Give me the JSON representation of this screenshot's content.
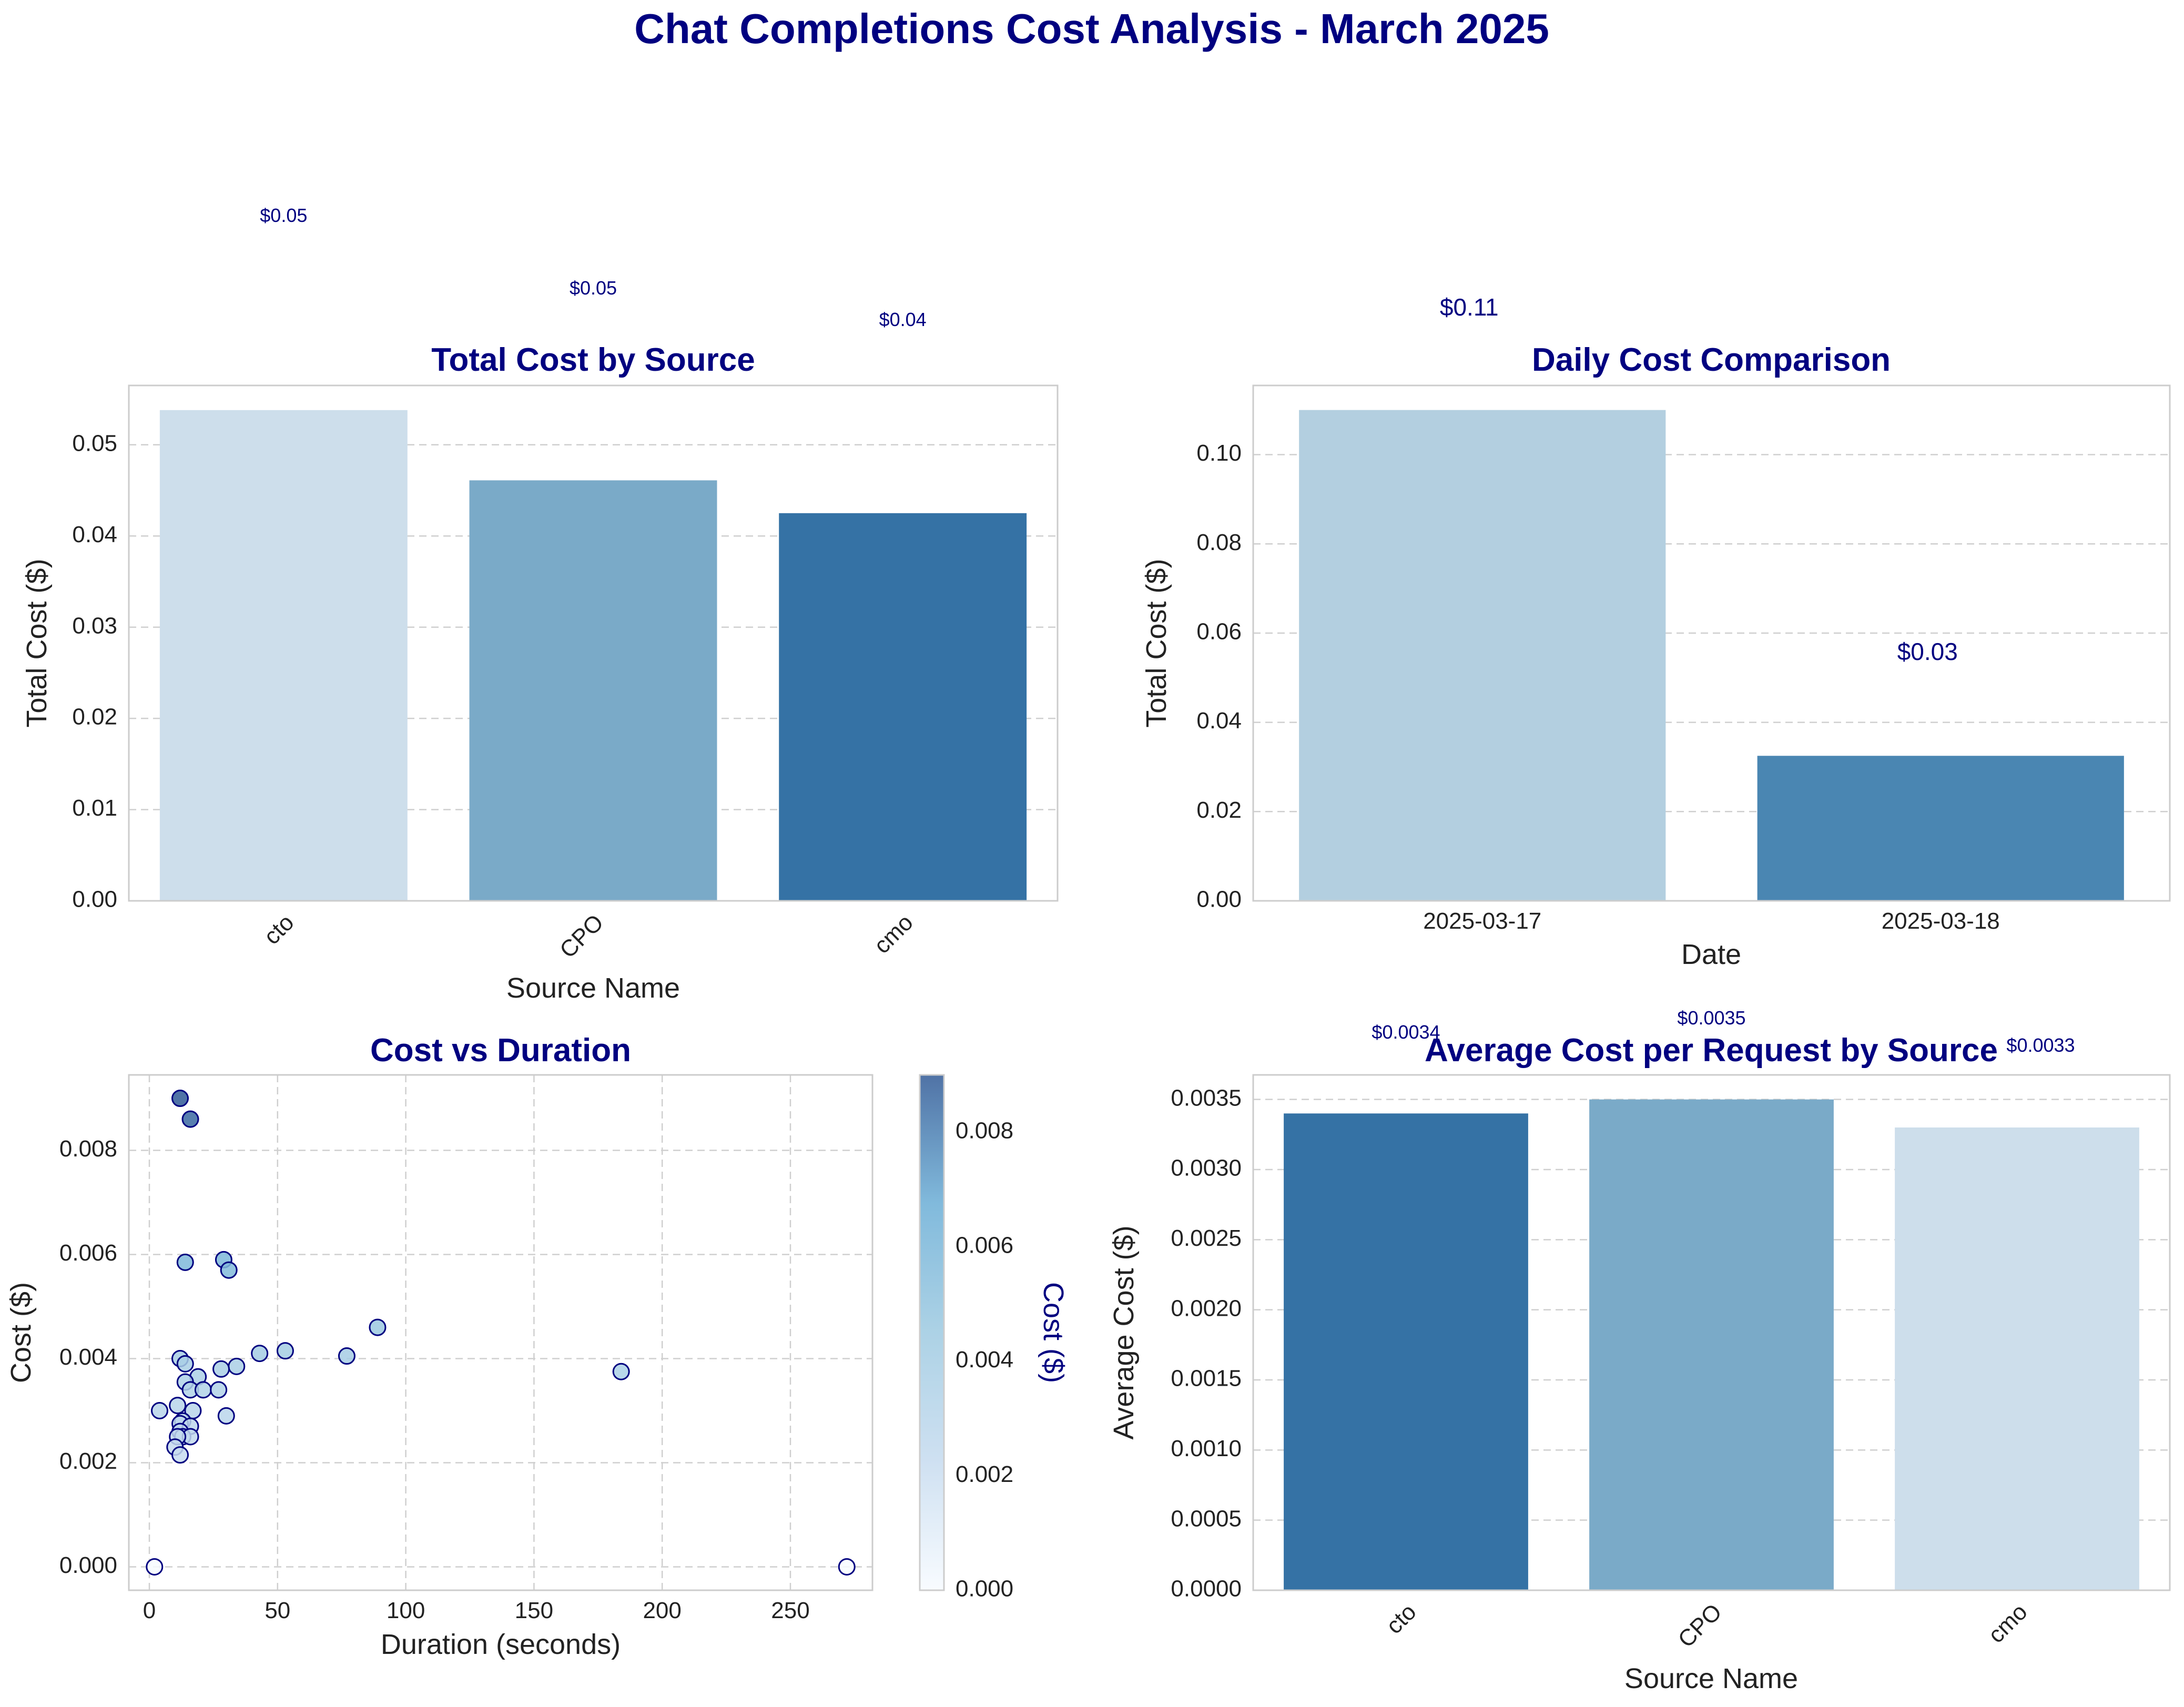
{
  "figure": {
    "title": "Chat Completions Cost Analysis - March 2025"
  },
  "colors": {
    "title": "#000080",
    "axis_text": "#222222",
    "grid": "#cfcfcf",
    "spine": "#cccccc",
    "marker_edge": "#000080"
  },
  "chart_data": [
    {
      "type": "bar",
      "title": "Total Cost by Source",
      "xlabel": "Source Name",
      "ylabel": "Total Cost ($)",
      "categories": [
        "cto",
        "CPO",
        "cmo"
      ],
      "values": [
        0.0538,
        0.0461,
        0.0425
      ],
      "bar_labels": [
        "$0.05",
        "$0.05",
        "$0.04"
      ],
      "colors": [
        "#cddeeb",
        "#7aaac8",
        "#3572a5"
      ],
      "ylim": [
        0,
        0.0565
      ],
      "yticks": [
        0,
        0.01,
        0.02,
        0.03,
        0.04,
        0.05
      ],
      "ytick_labels": [
        "0.00",
        "0.01",
        "0.02",
        "0.03",
        "0.04",
        "0.05"
      ],
      "grid": "y, dashed",
      "xtick_rotation": 45
    },
    {
      "type": "bar",
      "title": "Daily Cost Comparison",
      "xlabel": "Date",
      "ylabel": "Total Cost ($)",
      "categories": [
        "2025-03-17",
        "2025-03-18"
      ],
      "values": [
        0.11,
        0.0325
      ],
      "bar_labels": [
        "$0.11",
        "$0.03"
      ],
      "colors": [
        "#b3cfe0",
        "#4a86b2"
      ],
      "ylim": [
        0,
        0.1155
      ],
      "yticks": [
        0,
        0.02,
        0.04,
        0.06,
        0.08,
        0.1
      ],
      "ytick_labels": [
        "0.00",
        "0.02",
        "0.04",
        "0.06",
        "0.08",
        "0.10"
      ],
      "grid": "y, dashed",
      "xtick_rotation": 0
    },
    {
      "type": "scatter",
      "title": "Cost vs Duration",
      "xlabel": "Duration (seconds)",
      "ylabel": "Cost ($)",
      "colorbar_label": "Cost ($)",
      "colorbar_ticks": [
        "0.000",
        "0.002",
        "0.004",
        "0.006",
        "0.008"
      ],
      "colorbar_range": [
        0,
        0.009
      ],
      "xlim": [
        -8,
        282
      ],
      "ylim": [
        -0.00045,
        0.00945
      ],
      "xticks": [
        0,
        50,
        100,
        150,
        200,
        250
      ],
      "yticks": [
        0,
        0.002,
        0.004,
        0.006,
        0.008
      ],
      "ytick_labels": [
        "0.000",
        "0.002",
        "0.004",
        "0.006",
        "0.008"
      ],
      "grid": "both, dashed",
      "points": [
        {
          "x": 12,
          "y": 0.009
        },
        {
          "x": 16,
          "y": 0.0086
        },
        {
          "x": 29,
          "y": 0.0059
        },
        {
          "x": 31,
          "y": 0.0057
        },
        {
          "x": 14,
          "y": 0.00585
        },
        {
          "x": 89,
          "y": 0.0046
        },
        {
          "x": 53,
          "y": 0.00415
        },
        {
          "x": 43,
          "y": 0.0041
        },
        {
          "x": 77,
          "y": 0.00405
        },
        {
          "x": 12,
          "y": 0.004
        },
        {
          "x": 14,
          "y": 0.0039
        },
        {
          "x": 34,
          "y": 0.00385
        },
        {
          "x": 28,
          "y": 0.0038
        },
        {
          "x": 184,
          "y": 0.00375
        },
        {
          "x": 19,
          "y": 0.00365
        },
        {
          "x": 14,
          "y": 0.00355
        },
        {
          "x": 16,
          "y": 0.0034
        },
        {
          "x": 21,
          "y": 0.0034
        },
        {
          "x": 27,
          "y": 0.0034
        },
        {
          "x": 11,
          "y": 0.0031
        },
        {
          "x": 17,
          "y": 0.003
        },
        {
          "x": 4,
          "y": 0.003
        },
        {
          "x": 30,
          "y": 0.0029
        },
        {
          "x": 13,
          "y": 0.0028
        },
        {
          "x": 12,
          "y": 0.00275
        },
        {
          "x": 16,
          "y": 0.0027
        },
        {
          "x": 12,
          "y": 0.0026
        },
        {
          "x": 13,
          "y": 0.0025
        },
        {
          "x": 16,
          "y": 0.0025
        },
        {
          "x": 11,
          "y": 0.0025
        },
        {
          "x": 10,
          "y": 0.0023
        },
        {
          "x": 12,
          "y": 0.00215
        },
        {
          "x": 2,
          "y": 0.0
        },
        {
          "x": 272,
          "y": 0.0
        }
      ]
    },
    {
      "type": "bar",
      "title": "Average Cost per Request by Source",
      "xlabel": "Source Name",
      "ylabel": "Average Cost ($)",
      "categories": [
        "cto",
        "CPO",
        "cmo"
      ],
      "values": [
        0.0034,
        0.0035,
        0.0033
      ],
      "bar_labels": [
        "$0.0034",
        "$0.0035",
        "$0.0033"
      ],
      "colors": [
        "#3572a5",
        "#7aaac8",
        "#cddeeb"
      ],
      "ylim": [
        0,
        0.003675
      ],
      "yticks": [
        0,
        0.0005,
        0.001,
        0.0015,
        0.002,
        0.0025,
        0.003,
        0.0035
      ],
      "ytick_labels": [
        "0.0000",
        "0.0005",
        "0.0010",
        "0.0015",
        "0.0020",
        "0.0025",
        "0.0030",
        "0.0035"
      ],
      "grid": "y, dashed",
      "xtick_rotation": 45
    }
  ]
}
